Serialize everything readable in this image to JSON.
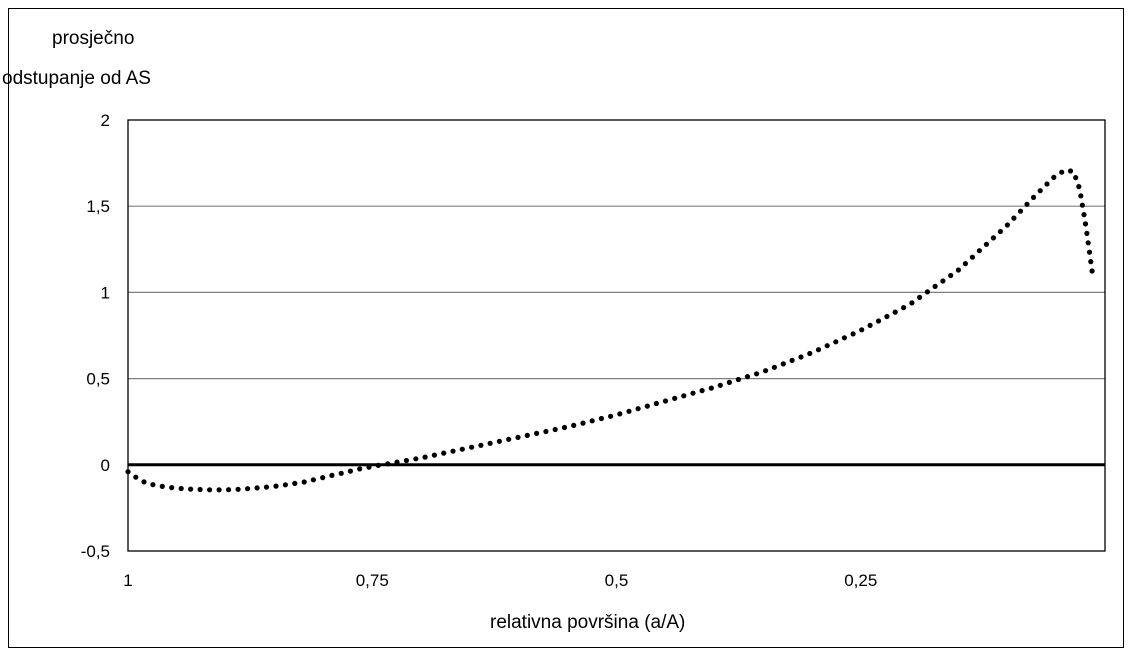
{
  "chart_data": {
    "type": "scatter",
    "title": "",
    "ylabel_lines": [
      "prosječno",
      "odstupanje od AS"
    ],
    "xlabel": "relativna površina (a/A)",
    "x_reversed": true,
    "xlim": [
      1.0,
      0.0
    ],
    "ylim": [
      -0.5,
      2.0
    ],
    "x_ticks": [
      {
        "value": 1.0,
        "label": "1"
      },
      {
        "value": 0.75,
        "label": "0,75"
      },
      {
        "value": 0.5,
        "label": "0,5"
      },
      {
        "value": 0.25,
        "label": "0,25"
      }
    ],
    "y_ticks": [
      {
        "value": 2.0,
        "label": "2"
      },
      {
        "value": 1.5,
        "label": "1,5"
      },
      {
        "value": 1.0,
        "label": "1"
      },
      {
        "value": 0.5,
        "label": "0,5"
      },
      {
        "value": 0.0,
        "label": "0"
      },
      {
        "value": -0.5,
        "label": "-0,5"
      }
    ],
    "grid": "horizontal",
    "reference_line_y": 0,
    "marker": "dot",
    "series": [
      {
        "name": "",
        "color": "#000000",
        "points": [
          {
            "x": 1.0,
            "y": -0.04
          },
          {
            "x": 0.99,
            "y": -0.08
          },
          {
            "x": 0.98,
            "y": -0.11
          },
          {
            "x": 0.96,
            "y": -0.13
          },
          {
            "x": 0.94,
            "y": -0.14
          },
          {
            "x": 0.92,
            "y": -0.145
          },
          {
            "x": 0.9,
            "y": -0.145
          },
          {
            "x": 0.88,
            "y": -0.14
          },
          {
            "x": 0.85,
            "y": -0.125
          },
          {
            "x": 0.82,
            "y": -0.1
          },
          {
            "x": 0.79,
            "y": -0.06
          },
          {
            "x": 0.76,
            "y": -0.02
          },
          {
            "x": 0.73,
            "y": 0.01
          },
          {
            "x": 0.7,
            "y": 0.04
          },
          {
            "x": 0.65,
            "y": 0.1
          },
          {
            "x": 0.6,
            "y": 0.16
          },
          {
            "x": 0.55,
            "y": 0.22
          },
          {
            "x": 0.5,
            "y": 0.29
          },
          {
            "x": 0.45,
            "y": 0.37
          },
          {
            "x": 0.4,
            "y": 0.45
          },
          {
            "x": 0.35,
            "y": 0.54
          },
          {
            "x": 0.3,
            "y": 0.65
          },
          {
            "x": 0.25,
            "y": 0.78
          },
          {
            "x": 0.2,
            "y": 0.93
          },
          {
            "x": 0.15,
            "y": 1.13
          },
          {
            "x": 0.1,
            "y": 1.39
          },
          {
            "x": 0.07,
            "y": 1.57
          },
          {
            "x": 0.05,
            "y": 1.68
          },
          {
            "x": 0.04,
            "y": 1.71
          },
          {
            "x": 0.032,
            "y": 1.7
          },
          {
            "x": 0.026,
            "y": 1.6
          },
          {
            "x": 0.02,
            "y": 1.4
          },
          {
            "x": 0.015,
            "y": 1.2
          },
          {
            "x": 0.012,
            "y": 1.07
          }
        ]
      }
    ]
  }
}
